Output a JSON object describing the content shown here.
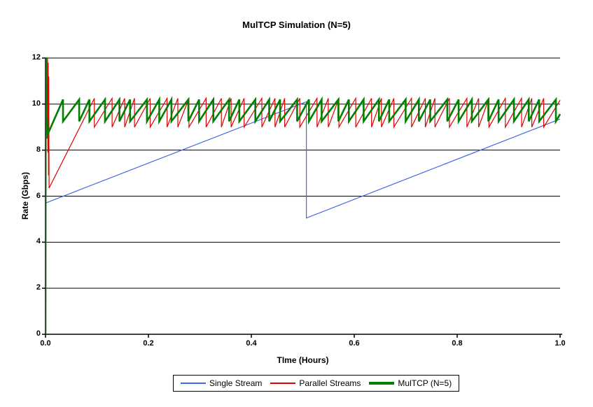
{
  "title": "MulTCP Simulation (N=5)",
  "axes": {
    "x_label": "TIme (Hours)",
    "y_label": "Rate (Gbps)",
    "x_ticks": [
      "0.0",
      "0.2",
      "0.4",
      "0.6",
      "0.8",
      "1.0"
    ],
    "y_ticks": [
      "0",
      "2",
      "4",
      "6",
      "8",
      "10",
      "12"
    ]
  },
  "legend": {
    "items": [
      {
        "label": "Single Stream",
        "color": "#4169e1",
        "line_thickness": 2
      },
      {
        "label": "Parallel Streams",
        "color": "#e00000",
        "line_thickness": 2
      },
      {
        "label": "MulTCP (N=5)",
        "color": "#008000",
        "line_thickness": 4
      }
    ]
  },
  "colors": {
    "grid": "#000000",
    "axis": "#000000",
    "background": "#ffffff"
  },
  "chart_data": {
    "type": "line",
    "title": "MulTCP Simulation (N=5)",
    "xlabel": "TIme (Hours)",
    "ylabel": "Rate (Gbps)",
    "xlim": [
      0,
      1.0
    ],
    "ylim": [
      0,
      12
    ],
    "x_tick_values": [
      0,
      0.2,
      0.4,
      0.6,
      0.8,
      1.0
    ],
    "y_tick_values": [
      0,
      2,
      4,
      6,
      8,
      10,
      12
    ],
    "grid": "horizontal",
    "legend_position": "bottom-center",
    "series": [
      {
        "name": "Single Stream",
        "color": "#4169e1",
        "width": 1.2,
        "mode": "polyline",
        "points": [
          [
            0,
            5.7
          ],
          [
            0.507,
            10.1
          ],
          [
            0.507,
            5.05
          ],
          [
            1.0,
            9.35
          ]
        ]
      },
      {
        "name": "Parallel Streams",
        "color": "#e00000",
        "width": 1.2,
        "mode": "sawtooth",
        "prefix": [
          [
            0.004,
            12
          ],
          [
            0.0046,
            7.9
          ],
          [
            0.0052,
            11.8
          ],
          [
            0.0058,
            6.9
          ],
          [
            0.0064,
            11.2
          ],
          [
            0.007,
            6.35
          ]
        ],
        "ramp_end_t": 0.095,
        "peak": 10.25,
        "trough": 9.0,
        "period": 0.0265,
        "jitter": 0.3,
        "jitter_freq": 1.7,
        "t_end": 1.0
      },
      {
        "name": "MulTCP (N=5)",
        "color": "#008000",
        "width": 2.6,
        "mode": "sawtooth",
        "prefix": [
          [
            0,
            0
          ],
          [
            0.0005,
            12
          ],
          [
            0.0013,
            12
          ],
          [
            0.002,
            8.5
          ],
          [
            0.0028,
            9.4
          ],
          [
            0.0036,
            8.65
          ]
        ],
        "ramp_end_t": 0.034,
        "peak": 10.2,
        "trough": 9.25,
        "period": 0.0265,
        "jitter": 0.25,
        "jitter_freq": 2.3,
        "t_end": 1.0
      }
    ]
  }
}
